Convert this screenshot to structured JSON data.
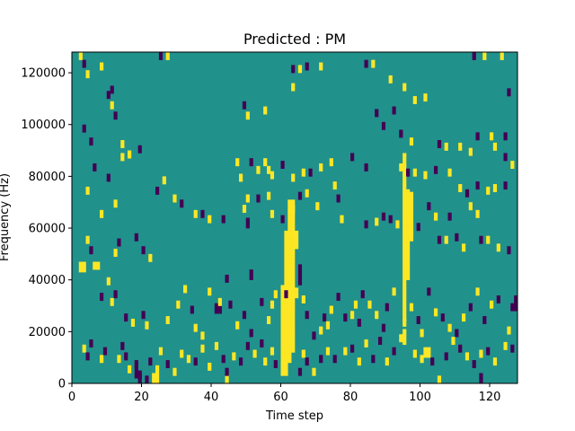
{
  "chart_data": {
    "type": "heatmap",
    "title": "Predicted : PM",
    "xlabel": "Time step",
    "ylabel": "Frequency (Hz)",
    "xlim": [
      0,
      128
    ],
    "ylim": [
      0,
      128000
    ],
    "x_ticks": [
      0,
      20,
      40,
      60,
      80,
      100,
      120
    ],
    "y_ticks": [
      0,
      20000,
      40000,
      60000,
      80000,
      100000,
      120000
    ],
    "x_tick_labels": [
      "0",
      "20",
      "40",
      "60",
      "80",
      "100",
      "120"
    ],
    "y_tick_labels": [
      "0",
      "20000",
      "40000",
      "60000",
      "80000",
      "100000",
      "120000"
    ],
    "n_rows": 128,
    "n_cols": 128,
    "background_value": 0,
    "colors": {
      "-1": "#440154",
      "0": "#21918c",
      "1": "#fde725"
    },
    "cells": [
      [
        2,
        127,
        1
      ],
      [
        3,
        124,
        -1
      ],
      [
        4,
        120,
        1
      ],
      [
        8,
        123,
        1
      ],
      [
        10,
        112,
        -1
      ],
      [
        11,
        114,
        -1
      ],
      [
        11,
        108,
        1
      ],
      [
        12,
        104,
        -1
      ],
      [
        14,
        93,
        1
      ],
      [
        16,
        89,
        1
      ],
      [
        25,
        127,
        -1
      ],
      [
        27,
        127,
        1
      ],
      [
        49,
        108,
        -1
      ],
      [
        50,
        104,
        1
      ],
      [
        55,
        106,
        1
      ],
      [
        63,
        122,
        -1
      ],
      [
        65,
        122,
        1
      ],
      [
        67,
        123,
        -1
      ],
      [
        71,
        123,
        1
      ],
      [
        63,
        115,
        1
      ],
      [
        84,
        124,
        -1
      ],
      [
        86,
        124,
        1
      ],
      [
        91,
        118,
        1
      ],
      [
        95,
        115,
        1
      ],
      [
        98,
        110,
        1
      ],
      [
        101,
        111,
        1
      ],
      [
        87,
        105,
        -1
      ],
      [
        92,
        106,
        -1
      ],
      [
        89,
        100,
        -1
      ],
      [
        94,
        97,
        -1
      ],
      [
        97,
        94,
        1
      ],
      [
        105,
        93,
        -1
      ],
      [
        107,
        92,
        1
      ],
      [
        111,
        92,
        1
      ],
      [
        114,
        90,
        1
      ],
      [
        116,
        96,
        -1
      ],
      [
        120,
        96,
        1
      ],
      [
        124,
        96,
        -1
      ],
      [
        121,
        92,
        1
      ],
      [
        124,
        88,
        -1
      ],
      [
        126,
        85,
        1
      ],
      [
        128,
        80,
        1
      ],
      [
        115,
        127,
        -1
      ],
      [
        118,
        127,
        1
      ],
      [
        123,
        127,
        1
      ],
      [
        125,
        113,
        -1
      ],
      [
        128,
        113,
        1
      ],
      [
        3,
        99,
        -1
      ],
      [
        5,
        94,
        -1
      ],
      [
        10,
        80,
        -1
      ],
      [
        14,
        88,
        1
      ],
      [
        19,
        91,
        -1
      ],
      [
        6,
        84,
        -1
      ],
      [
        4,
        75,
        1
      ],
      [
        12,
        70,
        1
      ],
      [
        8,
        66,
        1
      ],
      [
        4,
        56,
        1
      ],
      [
        5,
        52,
        -1
      ],
      [
        12,
        51,
        1
      ],
      [
        13,
        55,
        -1
      ],
      [
        18,
        57,
        -1
      ],
      [
        20,
        52,
        -1
      ],
      [
        22,
        49,
        1
      ],
      [
        24,
        75,
        -1
      ],
      [
        26,
        79,
        1
      ],
      [
        29,
        72,
        1
      ],
      [
        31,
        70,
        -1
      ],
      [
        35,
        66,
        1
      ],
      [
        37,
        66,
        -1
      ],
      [
        39,
        64,
        1
      ],
      [
        43,
        64,
        -1
      ],
      [
        47,
        86,
        1
      ],
      [
        48,
        80,
        1
      ],
      [
        51,
        86,
        -1
      ],
      [
        53,
        83,
        1
      ],
      [
        55,
        86,
        1
      ],
      [
        56,
        83,
        1
      ],
      [
        57,
        81,
        1
      ],
      [
        60,
        85,
        -1
      ],
      [
        63,
        80,
        1
      ],
      [
        66,
        82,
        1
      ],
      [
        68,
        82,
        -1
      ],
      [
        71,
        84,
        1
      ],
      [
        74,
        86,
        1
      ],
      [
        76,
        72,
        -1
      ],
      [
        80,
        88,
        -1
      ],
      [
        84,
        84,
        -1
      ],
      [
        94,
        84,
        1
      ],
      [
        96,
        82,
        -1
      ],
      [
        98,
        82,
        1
      ],
      [
        101,
        81,
        1
      ],
      [
        104,
        83,
        -1
      ],
      [
        108,
        82,
        1
      ],
      [
        111,
        76,
        1
      ],
      [
        113,
        74,
        -1
      ],
      [
        116,
        77,
        -1
      ],
      [
        119,
        75,
        1
      ],
      [
        121,
        76,
        1
      ],
      [
        124,
        77,
        -1
      ],
      [
        49,
        68,
        1
      ],
      [
        50,
        72,
        1
      ],
      [
        53,
        72,
        -1
      ],
      [
        56,
        73,
        1
      ],
      [
        57,
        66,
        1
      ],
      [
        60,
        64,
        -1
      ],
      [
        63,
        68,
        1
      ],
      [
        65,
        73,
        -1
      ],
      [
        67,
        74,
        1
      ],
      [
        70,
        69,
        1
      ],
      [
        75,
        77,
        1
      ],
      [
        77,
        64,
        1
      ],
      [
        84,
        62,
        -1
      ],
      [
        87,
        63,
        1
      ],
      [
        89,
        65,
        -1
      ],
      [
        91,
        64,
        -1
      ],
      [
        93,
        62,
        1
      ],
      [
        96,
        66,
        1
      ],
      [
        97,
        59,
        1
      ],
      [
        99,
        61,
        -1
      ],
      [
        102,
        69,
        -1
      ],
      [
        104,
        65,
        1
      ],
      [
        105,
        56,
        -1
      ],
      [
        107,
        56,
        1
      ],
      [
        108,
        65,
        -1
      ],
      [
        110,
        57,
        -1
      ],
      [
        112,
        53,
        1
      ],
      [
        114,
        69,
        1
      ],
      [
        116,
        66,
        1
      ],
      [
        117,
        56,
        -1
      ],
      [
        119,
        56,
        1
      ],
      [
        122,
        53,
        1
      ],
      [
        125,
        52,
        -1
      ],
      [
        6,
        46,
        1
      ],
      [
        7,
        46,
        1
      ],
      [
        8,
        34,
        -1
      ],
      [
        10,
        40,
        1
      ],
      [
        11,
        32,
        1
      ],
      [
        12,
        35,
        -1
      ],
      [
        15,
        26,
        -1
      ],
      [
        17,
        24,
        1
      ],
      [
        20,
        27,
        -1
      ],
      [
        21,
        23,
        1
      ],
      [
        27,
        25,
        1
      ],
      [
        30,
        31,
        1
      ],
      [
        32,
        37,
        1
      ],
      [
        34,
        29,
        -1
      ],
      [
        35,
        22,
        1
      ],
      [
        37,
        19,
        1
      ],
      [
        39,
        36,
        1
      ],
      [
        41,
        29,
        -1
      ],
      [
        42,
        32,
        1
      ],
      [
        44,
        41,
        -1
      ],
      [
        45,
        31,
        -1
      ],
      [
        47,
        23,
        1
      ],
      [
        49,
        27,
        -1
      ],
      [
        51,
        20,
        -1
      ],
      [
        54,
        32,
        -1
      ],
      [
        56,
        25,
        1
      ],
      [
        57,
        31,
        1
      ],
      [
        58,
        35,
        1
      ],
      [
        60,
        28,
        1
      ],
      [
        61,
        35,
        -1
      ],
      [
        66,
        33,
        1
      ],
      [
        67,
        27,
        -1
      ],
      [
        69,
        19,
        -1
      ],
      [
        71,
        21,
        1
      ],
      [
        72,
        26,
        -1
      ],
      [
        73,
        23,
        1
      ],
      [
        74,
        29,
        1
      ],
      [
        76,
        34,
        -1
      ],
      [
        78,
        26,
        -1
      ],
      [
        80,
        27,
        1
      ],
      [
        81,
        31,
        1
      ],
      [
        82,
        24,
        -1
      ],
      [
        83,
        35,
        -1
      ],
      [
        85,
        31,
        1
      ],
      [
        87,
        27,
        1
      ],
      [
        89,
        22,
        -1
      ],
      [
        90,
        30,
        -1
      ],
      [
        92,
        36,
        1
      ],
      [
        95,
        24,
        1
      ],
      [
        97,
        30,
        1
      ],
      [
        99,
        25,
        -1
      ],
      [
        100,
        20,
        1
      ],
      [
        102,
        36,
        -1
      ],
      [
        104,
        28,
        1
      ],
      [
        106,
        26,
        -1
      ],
      [
        108,
        22,
        1
      ],
      [
        110,
        20,
        -1
      ],
      [
        112,
        26,
        1
      ],
      [
        114,
        30,
        -1
      ],
      [
        116,
        36,
        1
      ],
      [
        118,
        25,
        -1
      ],
      [
        120,
        31,
        1
      ],
      [
        122,
        33,
        -1
      ],
      [
        125,
        21,
        1
      ],
      [
        3,
        14,
        1
      ],
      [
        4,
        11,
        -1
      ],
      [
        5,
        16,
        -1
      ],
      [
        8,
        10,
        1
      ],
      [
        9,
        13,
        -1
      ],
      [
        13,
        10,
        1
      ],
      [
        14,
        15,
        -1
      ],
      [
        15,
        11,
        -1
      ],
      [
        16,
        6,
        1
      ],
      [
        18,
        8,
        -1
      ],
      [
        19,
        4,
        -1
      ],
      [
        21,
        2,
        -1
      ],
      [
        22,
        9,
        -1
      ],
      [
        24,
        6,
        1
      ],
      [
        25,
        13,
        1
      ],
      [
        27,
        8,
        -1
      ],
      [
        29,
        5,
        1
      ],
      [
        31,
        12,
        1
      ],
      [
        33,
        10,
        1
      ],
      [
        35,
        9,
        -1
      ],
      [
        37,
        14,
        1
      ],
      [
        39,
        7,
        1
      ],
      [
        41,
        15,
        1
      ],
      [
        43,
        10,
        -1
      ],
      [
        44,
        5,
        -1
      ],
      [
        46,
        11,
        1
      ],
      [
        48,
        9,
        -1
      ],
      [
        50,
        15,
        -1
      ],
      [
        52,
        12,
        1
      ],
      [
        54,
        16,
        -1
      ],
      [
        55,
        9,
        1
      ],
      [
        57,
        13,
        1
      ],
      [
        58,
        8,
        -1
      ],
      [
        65,
        5,
        -1
      ],
      [
        66,
        12,
        1
      ],
      [
        67,
        9,
        -1
      ],
      [
        69,
        5,
        1
      ],
      [
        71,
        10,
        -1
      ],
      [
        73,
        13,
        1
      ],
      [
        75,
        10,
        -1
      ],
      [
        78,
        13,
        1
      ],
      [
        80,
        14,
        -1
      ],
      [
        82,
        9,
        1
      ],
      [
        84,
        16,
        1
      ],
      [
        86,
        10,
        -1
      ],
      [
        88,
        17,
        -1
      ],
      [
        90,
        9,
        1
      ],
      [
        92,
        13,
        -1
      ],
      [
        94,
        18,
        1
      ],
      [
        98,
        12,
        1
      ],
      [
        100,
        10,
        1
      ],
      [
        103,
        9,
        -1
      ],
      [
        105,
        2,
        1
      ],
      [
        107,
        11,
        -1
      ],
      [
        109,
        17,
        1
      ],
      [
        111,
        14,
        -1
      ],
      [
        113,
        11,
        1
      ],
      [
        115,
        8,
        -1
      ],
      [
        117,
        12,
        1
      ],
      [
        119,
        13,
        -1
      ],
      [
        121,
        9,
        1
      ],
      [
        124,
        15,
        1
      ],
      [
        126,
        14,
        -1
      ],
      [
        126,
        30,
        -1
      ],
      [
        127,
        30,
        -1
      ],
      [
        127,
        33,
        -1
      ],
      [
        128,
        31,
        -1
      ]
    ],
    "bands": [
      {
        "col": 60,
        "from": 3,
        "to": 37,
        "value": 1
      },
      {
        "col": 61,
        "from": 3,
        "to": 58,
        "value": 1
      },
      {
        "col": 62,
        "from": 8,
        "to": 70,
        "value": 1
      },
      {
        "col": 63,
        "from": 12,
        "to": 70,
        "value": 1
      },
      {
        "col": 64,
        "from": 52,
        "to": 58,
        "value": 1
      },
      {
        "col": 95,
        "from": 24,
        "to": 88,
        "value": 1
      },
      {
        "col": 96,
        "from": 40,
        "to": 74,
        "value": 1
      },
      {
        "col": 97,
        "from": 55,
        "to": 73,
        "value": 1
      },
      {
        "col": 95,
        "from": 15,
        "to": 20,
        "value": 1
      },
      {
        "col": 19,
        "from": 0,
        "to": 3,
        "value": -1
      },
      {
        "col": 18,
        "from": 2,
        "to": 6,
        "value": -1
      },
      {
        "col": 23,
        "from": 0,
        "to": 3,
        "value": 1
      },
      {
        "col": 24,
        "from": 0,
        "to": 3,
        "value": 1
      },
      {
        "col": 44,
        "from": 0,
        "to": 3,
        "value": 1
      },
      {
        "col": 2,
        "from": 43,
        "to": 46,
        "value": 1
      },
      {
        "col": 3,
        "from": 43,
        "to": 46,
        "value": 1
      },
      {
        "col": 41,
        "from": 27,
        "to": 30,
        "value": -1
      },
      {
        "col": 42,
        "from": 27,
        "to": 30,
        "value": -1
      },
      {
        "col": 50,
        "from": 60,
        "to": 63,
        "value": -1
      },
      {
        "col": 51,
        "from": 40,
        "to": 43,
        "value": -1
      },
      {
        "col": 63,
        "from": 33,
        "to": 36,
        "value": 1
      },
      {
        "col": 64,
        "from": 33,
        "to": 36,
        "value": 1
      },
      {
        "col": 101,
        "from": 10,
        "to": 13,
        "value": 1
      },
      {
        "col": 102,
        "from": 10,
        "to": 13,
        "value": 1
      },
      {
        "col": 117,
        "from": 0,
        "to": 3,
        "value": -1
      },
      {
        "col": 65,
        "from": 38,
        "to": 45,
        "value": -1
      }
    ]
  }
}
